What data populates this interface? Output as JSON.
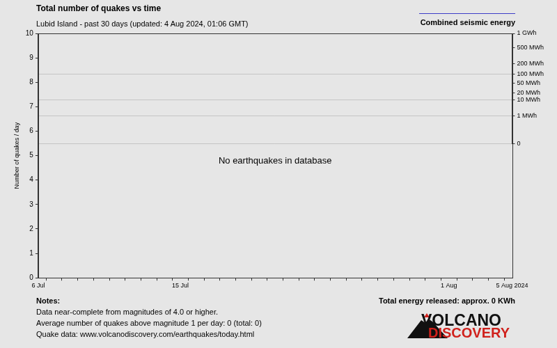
{
  "chart_data": {
    "type": "bar",
    "title": "Total number of quakes vs time",
    "subtitle": "Lubid Island - past 30 days (updated: 4 Aug 2024, 01:06 GMT)",
    "y_label": "Number of quakes / day",
    "annotation": "No earthquakes in database",
    "categories": [
      "6 Jul",
      null,
      null,
      null,
      null,
      null,
      null,
      null,
      null,
      "15 Jul",
      null,
      null,
      null,
      null,
      null,
      null,
      null,
      null,
      null,
      null,
      null,
      null,
      null,
      null,
      null,
      null,
      "1 Aug",
      null,
      null,
      null,
      "5 Aug 2024"
    ],
    "series": [
      {
        "type": "bar",
        "values": [
          0,
          0,
          0,
          0,
          0,
          0,
          0,
          0,
          0,
          0,
          0,
          0,
          0,
          0,
          0,
          0,
          0,
          0,
          0,
          0,
          0,
          0,
          0,
          0,
          0,
          0,
          0,
          0,
          0,
          0,
          0
        ]
      },
      {
        "name": "Combined seismic energy",
        "type": "line",
        "axis": "y2",
        "color": "#3c3cc8",
        "values": [
          null,
          null,
          null,
          null,
          null,
          null,
          null,
          null,
          null,
          null,
          null,
          null,
          null,
          null,
          null,
          null,
          null,
          null,
          null,
          null,
          null,
          null,
          null,
          null,
          null,
          null,
          null,
          null,
          null,
          null,
          null
        ]
      }
    ],
    "ylim": [
      0,
      10
    ],
    "yticks": [
      0,
      1,
      2,
      3,
      4,
      5,
      6,
      7,
      8,
      9,
      10
    ],
    "y2lim": [
      0,
      1000
    ],
    "y2ticks": [
      0,
      {
        "value": 1,
        "label": "1 MWh"
      },
      {
        "value": 10,
        "label": "10 MWh"
      },
      {
        "value": 20,
        "label": "20 MWh"
      },
      {
        "value": 50,
        "label": "50 MWh"
      },
      {
        "value": 100,
        "label": "100 MWh"
      },
      {
        "value": 200,
        "label": "200 MWh"
      },
      {
        "value": 500,
        "label": "500 MWh"
      },
      {
        "value": 1000,
        "label": "1 GWh"
      }
    ],
    "grid": true,
    "legend": "top-right"
  },
  "notes": {
    "heading": "Notes:",
    "lines": [
      "Data near-complete from magnitudes of 4.0 or higher.",
      "Average number of quakes above magnitude 1 per day: 0 (total: 0)",
      "Quake data: www.volcanodiscovery.com/earthquakes/today.html"
    ]
  },
  "energy_total": "Total energy released: approx. 0 KWh",
  "logo": [
    "VOLCANO",
    "DISCOVERY"
  ]
}
